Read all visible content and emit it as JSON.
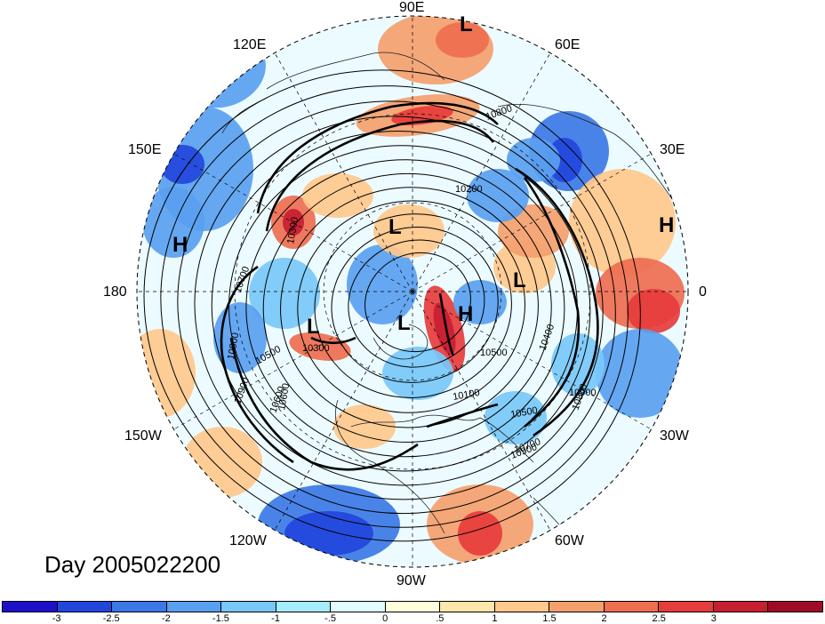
{
  "title": "Day 2005022200",
  "longitude_labels": [
    {
      "key": "90E",
      "text": "90E"
    },
    {
      "key": "60E",
      "text": "60E"
    },
    {
      "key": "30E",
      "text": "30E"
    },
    {
      "key": "0",
      "text": "0"
    },
    {
      "key": "30W",
      "text": "30W"
    },
    {
      "key": "60W",
      "text": "60W"
    },
    {
      "key": "90W",
      "text": "90W"
    },
    {
      "key": "120W",
      "text": "120W"
    },
    {
      "key": "150W",
      "text": "150W"
    },
    {
      "key": "180",
      "text": "180"
    },
    {
      "key": "150E",
      "text": "150E"
    },
    {
      "key": "120E",
      "text": "120E"
    }
  ],
  "pressure_centers": [
    {
      "key": "L-top",
      "text": "L"
    },
    {
      "key": "H-right",
      "text": "H"
    },
    {
      "key": "H-left",
      "text": "H"
    },
    {
      "key": "L-upper-center",
      "text": "L"
    },
    {
      "key": "L-center-right",
      "text": "L"
    },
    {
      "key": "L-center-left",
      "text": "L"
    },
    {
      "key": "L-center",
      "text": "L"
    },
    {
      "key": "H-center",
      "text": "H"
    }
  ],
  "contour_labels": [
    "10800",
    "10200",
    "10300",
    "10900",
    "10700",
    "10400",
    "10500",
    "10600",
    "10300",
    "10100",
    "10500",
    "10800",
    "10900",
    "10700",
    "10500",
    "10900",
    "10600",
    "10800"
  ],
  "colorbar": {
    "colors": [
      "#1e10c8",
      "#2246dc",
      "#3c78e6",
      "#5aa0f0",
      "#78c8fa",
      "#a6ecff",
      "#e0fcff",
      "#ffffdc",
      "#ffe6aa",
      "#ffc88c",
      "#f4a06e",
      "#ee6e50",
      "#e63c3c",
      "#c81e32",
      "#a00a28"
    ],
    "tick_labels": [
      "-3",
      "-2.5",
      "-2",
      "-1.5",
      "-1",
      "-.5",
      "0",
      ".5",
      "1",
      "1.5",
      "2",
      "2.5",
      "3"
    ]
  }
}
